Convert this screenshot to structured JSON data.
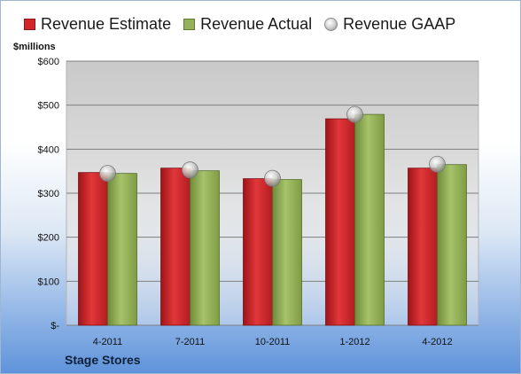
{
  "legend": {
    "estimate_label": "Revenue Estimate",
    "actual_label": "Revenue Actual",
    "gaap_label": "Revenue GAAP"
  },
  "units_label": "$millions",
  "company": "Stage Stores",
  "colors": {
    "estimate": "#d2262a",
    "actual": "#95b15a",
    "gaap": "#c8c8c8",
    "plot_background": "#d4d4d4"
  },
  "chart_data": {
    "type": "bar",
    "title": "",
    "xlabel": "",
    "ylabel": "$millions",
    "categories": [
      "4-2011",
      "7-2011",
      "10-2011",
      "1-2012",
      "4-2012"
    ],
    "series": [
      {
        "name": "Revenue Estimate",
        "values": [
          347,
          357,
          333,
          469,
          357
        ]
      },
      {
        "name": "Revenue Actual",
        "values": [
          345,
          351,
          331,
          479,
          365
        ]
      },
      {
        "name": "Revenue GAAP",
        "values": [
          345,
          353,
          334,
          479,
          366
        ]
      }
    ],
    "ylim": [
      0,
      600
    ],
    "yticks": [
      0,
      100,
      200,
      300,
      400,
      500,
      600
    ],
    "ytick_labels": [
      "$-",
      "$100",
      "$200",
      "$300",
      "$400",
      "$500",
      "$600"
    ],
    "grid": true,
    "legend_position": "top"
  }
}
